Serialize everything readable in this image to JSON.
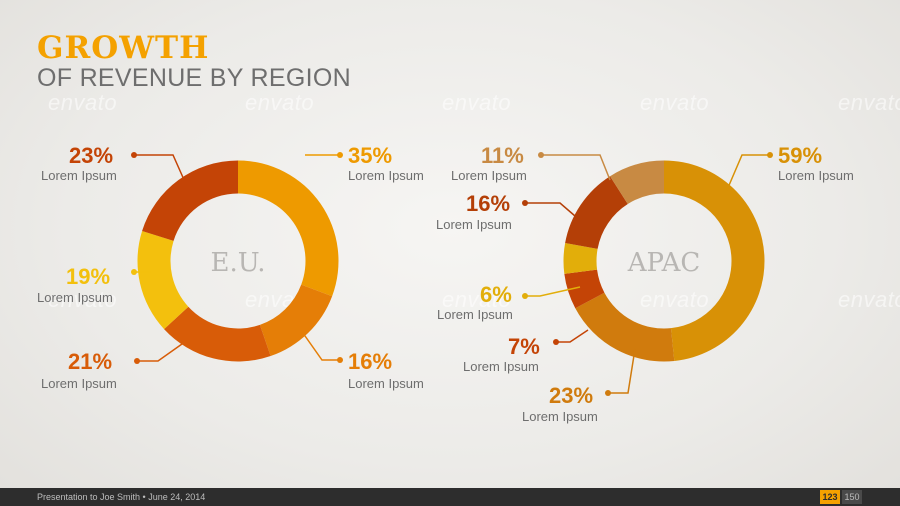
{
  "header": {
    "title": "GROWTH",
    "subtitle": "OF REVENUE BY REGION"
  },
  "watermark_text": "envato",
  "colors": {
    "accent": "#f4a100",
    "text_gray": "#6e6e6e",
    "center_gray": "#b8b6b3",
    "footer_bg": "#2d2d2d"
  },
  "chart_data": [
    {
      "type": "pie",
      "center_label": "E.U.",
      "slices": [
        {
          "value": 35,
          "label": "35%",
          "caption": "Lorem Ipsum",
          "color": "#ee9a00"
        },
        {
          "value": 16,
          "label": "16%",
          "caption": "Lorem Ipsum",
          "color": "#e57e07"
        },
        {
          "value": 21,
          "label": "21%",
          "caption": "Lorem Ipsum",
          "color": "#d85c08"
        },
        {
          "value": 19,
          "label": "19%",
          "caption": "Lorem Ipsum",
          "color": "#f3c00d"
        },
        {
          "value": 23,
          "label": "23%",
          "caption": "Lorem Ipsum",
          "color": "#c44406"
        }
      ]
    },
    {
      "type": "pie",
      "center_label": "APAC",
      "slices": [
        {
          "value": 59,
          "label": "59%",
          "caption": "Lorem Ipsum",
          "color": "#d89106"
        },
        {
          "value": 23,
          "label": "23%",
          "caption": "Lorem Ipsum",
          "color": "#d07b0d"
        },
        {
          "value": 7,
          "label": "7%",
          "caption": "Lorem Ipsum",
          "color": "#c44406"
        },
        {
          "value": 6,
          "label": "6%",
          "caption": "Lorem Ipsum",
          "color": "#e2ae0a"
        },
        {
          "value": 16,
          "label": "16%",
          "caption": "Lorem Ipsum",
          "color": "#b43f07"
        },
        {
          "value": 11,
          "label": "11%",
          "caption": "Lorem Ipsum",
          "color": "#c88a43"
        }
      ]
    }
  ],
  "footer": {
    "text": "Presentation to Joe Smith • June 24, 2014",
    "page_current": "123",
    "page_total": "150"
  }
}
